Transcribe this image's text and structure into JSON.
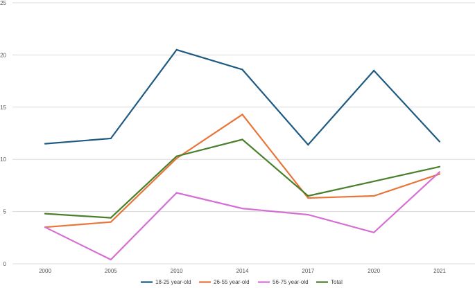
{
  "chart_data": {
    "type": "line",
    "title": "",
    "xlabel": "",
    "ylabel": "",
    "categories": [
      "2000",
      "2005",
      "2010",
      "2014",
      "2017",
      "2020",
      "2021"
    ],
    "ylim": [
      0,
      25
    ],
    "yticks": [
      "0",
      "5",
      "10",
      "15",
      "20",
      "25"
    ],
    "grid": true,
    "legend_position": "bottom",
    "series": [
      {
        "name": "18-25 year-old",
        "color": "#1f5a82",
        "values": [
          11.5,
          12.0,
          20.5,
          18.6,
          11.4,
          18.5,
          11.7
        ]
      },
      {
        "name": "26-55 year-old",
        "color": "#e8753a",
        "values": [
          3.5,
          4.0,
          10.1,
          14.3,
          6.3,
          6.5,
          8.6
        ]
      },
      {
        "name": "56-75 year-old",
        "color": "#d66fd3",
        "values": [
          3.5,
          0.4,
          6.8,
          5.3,
          4.7,
          3.0,
          8.8
        ]
      },
      {
        "name": "Total",
        "color": "#4a7f2b",
        "values": [
          4.8,
          4.4,
          10.3,
          11.9,
          6.5,
          7.9,
          9.3
        ]
      }
    ]
  }
}
